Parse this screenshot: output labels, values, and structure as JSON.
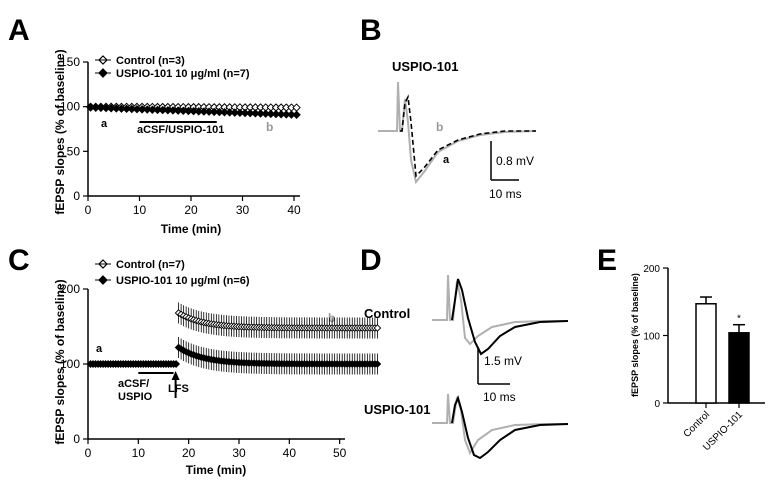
{
  "panels": {
    "A": {
      "letter": "A"
    },
    "B": {
      "letter": "B",
      "title": "USPIO-101",
      "trace_a": "a",
      "trace_b": "b",
      "scale_v": "0.8 mV",
      "scale_t": "10 ms"
    },
    "C": {
      "letter": "C"
    },
    "D": {
      "letter": "D",
      "row1": "Control",
      "row2": "USPIO-101",
      "scale_v": "1.5 mV",
      "scale_t": "10 ms"
    },
    "E": {
      "letter": "E"
    }
  },
  "colors": {
    "control_trace": "#b0b0b0",
    "uspio_trace": "#000000",
    "marker_b": "#999999"
  },
  "chart_data": [
    {
      "id": "A",
      "type": "scatter",
      "xlabel": "Time (min)",
      "ylabel": "fEPSP slopes (% of baseline)",
      "xlim": [
        0,
        40
      ],
      "ylim": [
        0,
        150
      ],
      "xticks": [
        0,
        10,
        20,
        30,
        40
      ],
      "yticks": [
        0,
        50,
        100,
        150
      ],
      "legend_position": "top-left",
      "annotations": {
        "a": "a",
        "b": "b",
        "bar": "aCSF/USPIO-101",
        "bar_range": [
          10,
          25
        ]
      },
      "series": [
        {
          "name": "Control (n=3)",
          "marker": "open-diamond",
          "x_start": 0.5,
          "x_end": 40,
          "step": 1,
          "y_start": 100,
          "y_end": 99,
          "err": 4
        },
        {
          "name": "USPIO-101 10 μg/ml (n=7)",
          "marker": "filled-diamond",
          "x_start": 0.5,
          "x_end": 40,
          "step": 1,
          "y_start": 99,
          "y_end": 91,
          "err": 3
        }
      ]
    },
    {
      "id": "C",
      "type": "scatter",
      "xlabel": "Time (min)",
      "ylabel": "fEPSP slopes (% of baseline)",
      "xlim": [
        0,
        60
      ],
      "ylim": [
        0,
        200
      ],
      "xticks": [
        0,
        10,
        20,
        30,
        40,
        50
      ],
      "yticks": [
        0,
        100,
        200
      ],
      "legend_position": "top-left",
      "annotations": {
        "a": "a",
        "b": "b",
        "bar": "aCSF/ USPIO",
        "bar_range": [
          10,
          17
        ],
        "lfs": "LFS",
        "lfs_at": 18
      },
      "series": [
        {
          "name": "Control (n=7)",
          "marker": "open-diamond",
          "x_start": 0.5,
          "x_end": 57.5,
          "step": 0.5,
          "baseline": 100,
          "peak": 168,
          "plateau": 148,
          "err_base": 4,
          "err_post": 14
        },
        {
          "name": "USPIO-101 10 μg/ml (n=6)",
          "marker": "filled-diamond",
          "x_start": 0.5,
          "x_end": 57.5,
          "step": 0.5,
          "baseline": 100,
          "peak": 122,
          "plateau": 100,
          "err_base": 4,
          "err_post": 14
        }
      ]
    },
    {
      "id": "E",
      "type": "bar",
      "ylabel": "fEPSP slopes (% of baseline)",
      "ylim": [
        0,
        200
      ],
      "yticks": [
        0,
        100,
        200
      ],
      "categories": [
        "Control",
        "USPIO-101"
      ],
      "values": [
        147,
        104
      ],
      "errors": [
        10,
        12
      ],
      "fills": [
        "#ffffff",
        "#000000"
      ],
      "significance": [
        "",
        "*"
      ]
    }
  ]
}
